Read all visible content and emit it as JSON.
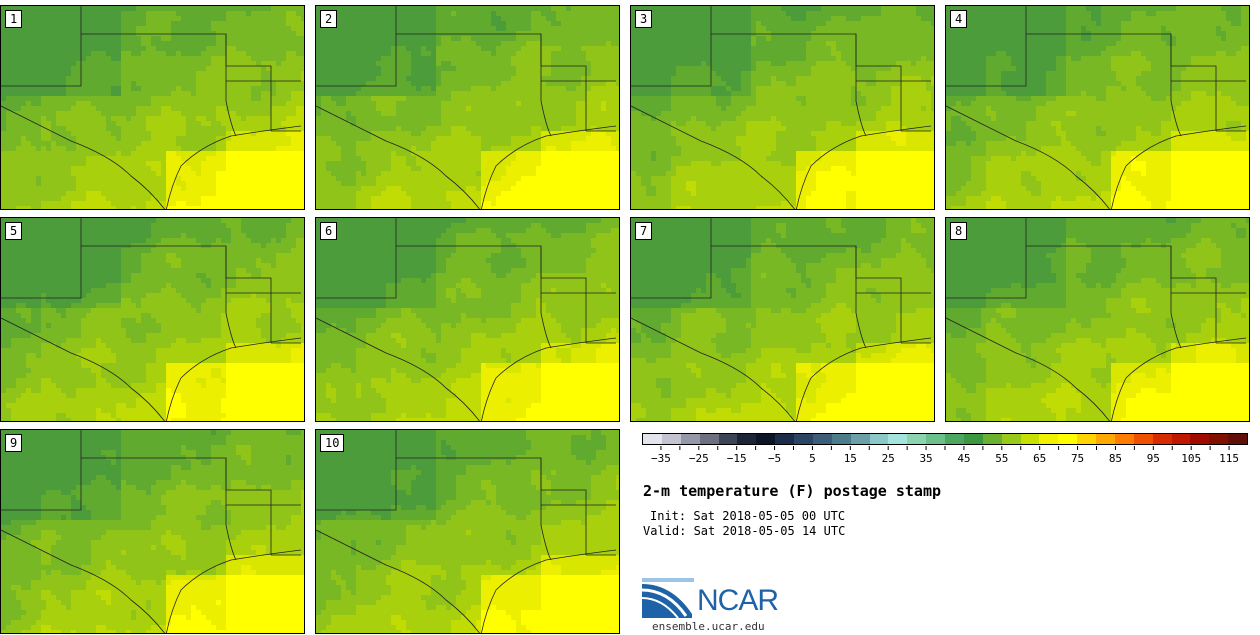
{
  "panels": [
    {
      "label": "1"
    },
    {
      "label": "2"
    },
    {
      "label": "3"
    },
    {
      "label": "4"
    },
    {
      "label": "5"
    },
    {
      "label": "6"
    },
    {
      "label": "7"
    },
    {
      "label": "8"
    },
    {
      "label": "9"
    },
    {
      "label": "10"
    }
  ],
  "colorbar": {
    "colors": [
      "#e4e4ec",
      "#c4c4d0",
      "#9498a8",
      "#6c7080",
      "#3c4458",
      "#1c2438",
      "#0c1428",
      "#1c2c48",
      "#2c4464",
      "#3c5c78",
      "#4c7c8c",
      "#6ca0a8",
      "#8cc8c8",
      "#a4e4dc",
      "#8cd4b0",
      "#6cc08c",
      "#4ca860",
      "#3c9840",
      "#6cb030",
      "#98c818",
      "#c8e000",
      "#f0f000",
      "#ffff00",
      "#ffd400",
      "#ffa800",
      "#ff7c00",
      "#f05000",
      "#d82c00",
      "#c01800",
      "#a00c00",
      "#801000",
      "#601008"
    ],
    "labels": [
      "−35",
      "−25",
      "−15",
      "−5",
      "5",
      "15",
      "25",
      "35",
      "45",
      "55",
      "65",
      "75",
      "85",
      "95",
      "105",
      "115"
    ]
  },
  "title": "2-m temperature (F) postage stamp",
  "init": "Init: Sat 2018-05-05 00 UTC",
  "valid": "Valid: Sat 2018-05-05 14 UTC",
  "logo": {
    "text": "NCAR",
    "url_text": "ensemble.ucar.edu"
  }
}
